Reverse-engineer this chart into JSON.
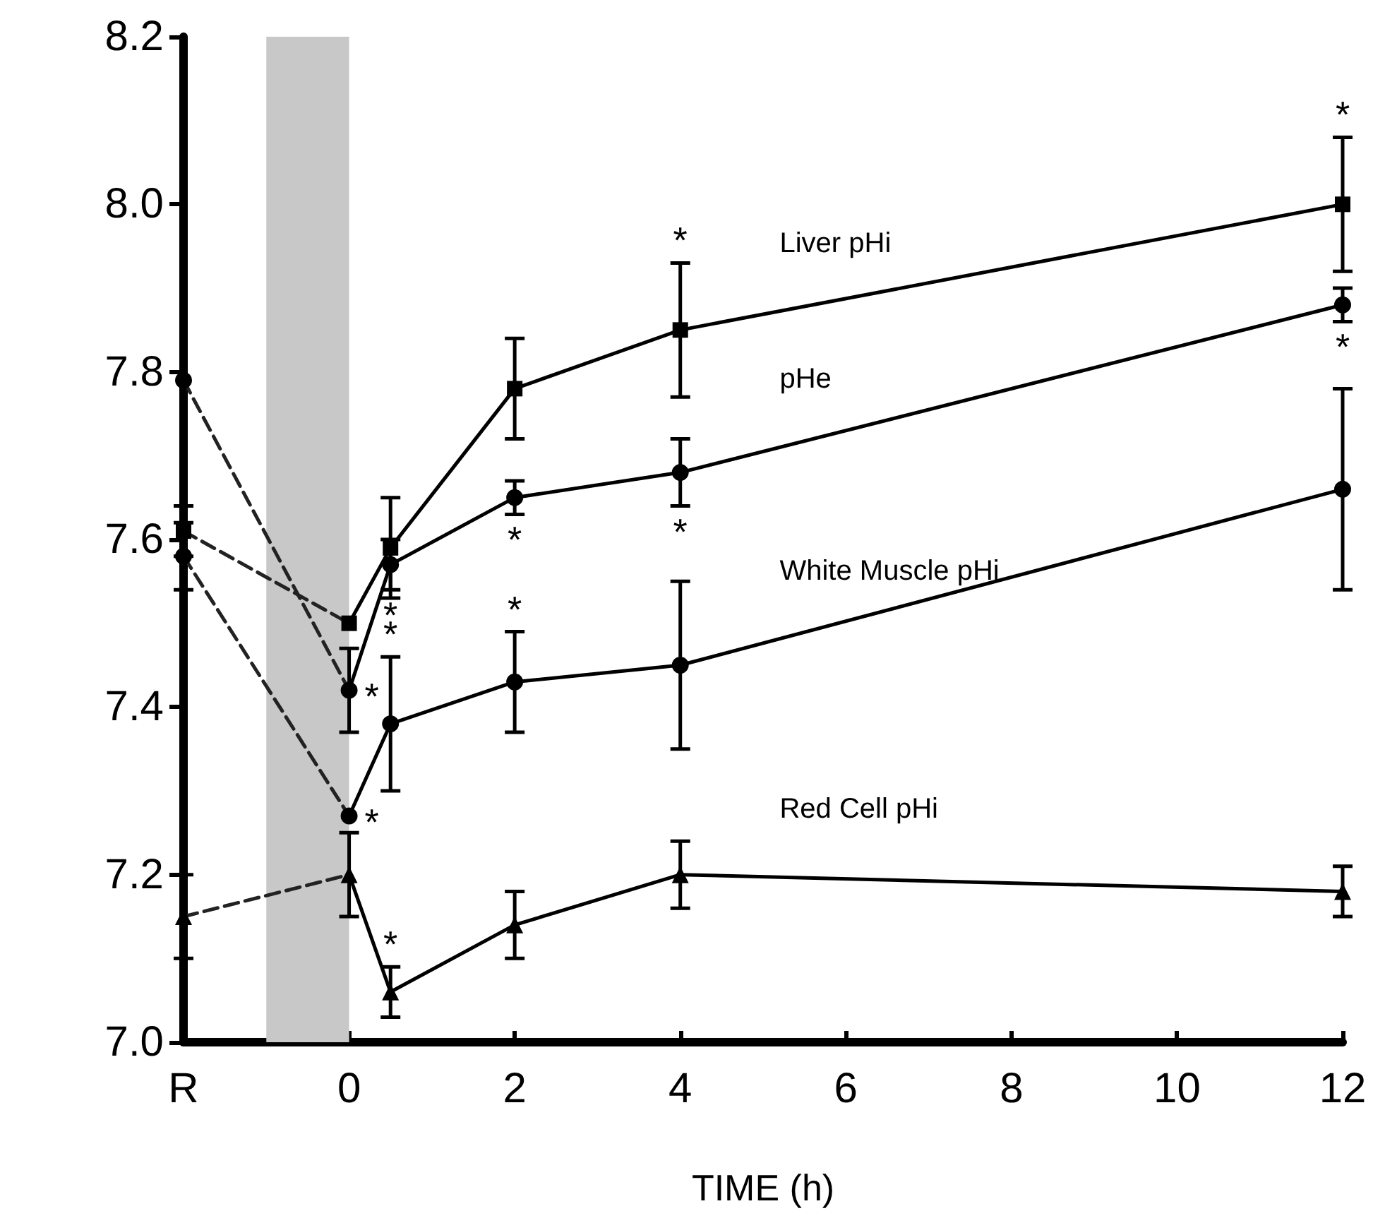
{
  "chart_data": {
    "type": "line",
    "xlabel": "TIME (h)",
    "xlim": [
      -2,
      12
    ],
    "xticks": [
      {
        "value": -2,
        "label": "R"
      },
      0,
      2,
      4,
      6,
      8,
      10,
      12
    ],
    "ylim": [
      7.0,
      8.2
    ],
    "yticks": [
      {
        "value": 7.0,
        "label": "7.0"
      },
      7.2,
      7.4,
      7.6,
      7.8,
      {
        "value": 8.0,
        "label": "8.0"
      },
      8.2
    ],
    "grid": false,
    "legend": false,
    "line_style": "solid",
    "bands": [
      {
        "axis": "x",
        "from": -1,
        "to": 0,
        "color": "#c8c8c8"
      }
    ],
    "series": [
      {
        "name": "Liver pHi",
        "color": "#000000",
        "marker": "square",
        "x": [
          -2,
          -1,
          0,
          0.5,
          2,
          4,
          12
        ],
        "values": [
          7.61,
          null,
          7.5,
          7.59,
          7.78,
          7.85,
          8.0
        ],
        "errors": [
          0.03,
          null,
          null,
          0.06,
          0.06,
          0.08,
          0.08
        ]
      },
      {
        "name": "pHe",
        "color": "#000000",
        "marker": "circle",
        "x": [
          -2,
          -1,
          0,
          0.5,
          2,
          4,
          12
        ],
        "values": [
          7.79,
          null,
          7.42,
          7.57,
          7.65,
          7.68,
          7.88
        ],
        "errors": [
          null,
          null,
          0.05,
          0.03,
          0.02,
          0.04,
          0.02
        ]
      },
      {
        "name": "White Muscle pHi",
        "color": "#000000",
        "marker": "circle",
        "x": [
          -2,
          -1,
          0,
          0.5,
          2,
          4,
          12
        ],
        "values": [
          7.58,
          null,
          7.27,
          7.38,
          7.43,
          7.45,
          7.66
        ],
        "errors": [
          0.04,
          null,
          null,
          0.08,
          0.06,
          0.1,
          0.12
        ]
      },
      {
        "name": "Red Cell pHi",
        "color": "#000000",
        "marker": "triangle",
        "x": [
          -2,
          -1,
          0,
          0.5,
          2,
          4,
          12
        ],
        "values": [
          7.15,
          null,
          7.2,
          7.06,
          7.14,
          7.2,
          7.18
        ],
        "errors": [
          0.05,
          null,
          0.05,
          0.03,
          0.04,
          0.04,
          0.03
        ]
      },
      {
        "color": "#222222",
        "marker": "none",
        "line_style": "dashed",
        "x": [
          -2,
          0
        ],
        "values": [
          7.61,
          7.5
        ]
      },
      {
        "color": "#222222",
        "marker": "none",
        "line_style": "dashed",
        "x": [
          -2,
          0
        ],
        "values": [
          7.79,
          7.42
        ]
      },
      {
        "color": "#222222",
        "marker": "none",
        "line_style": "dashed",
        "x": [
          -2,
          0
        ],
        "values": [
          7.58,
          7.27
        ]
      },
      {
        "color": "#222222",
        "marker": "none",
        "line_style": "dashed",
        "x": [
          -2,
          0
        ],
        "values": [
          7.15,
          7.2
        ]
      }
    ],
    "annotations": [
      {
        "text": "*",
        "x": 4,
        "y": 7.93
      },
      {
        "text": "*",
        "x": 12,
        "y": 8.08
      },
      {
        "text": "*",
        "x": 0.5,
        "y": 7.54
      },
      {
        "text": "*",
        "x": 0.5,
        "y": 7.46
      },
      {
        "text": "*",
        "x": 0,
        "y": 7.42
      },
      {
        "text": "*",
        "x": 0,
        "y": 7.27
      },
      {
        "text": "*",
        "x": 2,
        "y": 7.63
      },
      {
        "text": "*",
        "x": 4,
        "y": 7.64
      },
      {
        "text": "*",
        "x": 12,
        "y": 7.86
      },
      {
        "text": "*",
        "x": 2,
        "y": 7.49
      },
      {
        "text": "*",
        "x": 0.5,
        "y": 7.09
      }
    ]
  }
}
